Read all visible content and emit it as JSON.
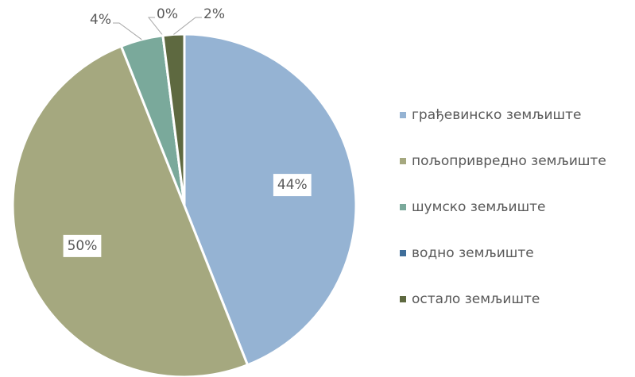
{
  "chart_data": {
    "type": "pie",
    "categories": [
      "грађевинско земљиште",
      "пољопривредно земљиште",
      "шумско земљиште",
      "водно земљиште",
      "остало земљиште"
    ],
    "values": [
      44,
      50,
      4,
      0,
      2
    ],
    "value_labels": [
      "44%",
      "50%",
      "4%",
      "0%",
      "2%"
    ],
    "colors": [
      "#95b3d3",
      "#a5a87f",
      "#7aa99b",
      "#3f6e9a",
      "#5e6940"
    ],
    "legend": "right"
  }
}
